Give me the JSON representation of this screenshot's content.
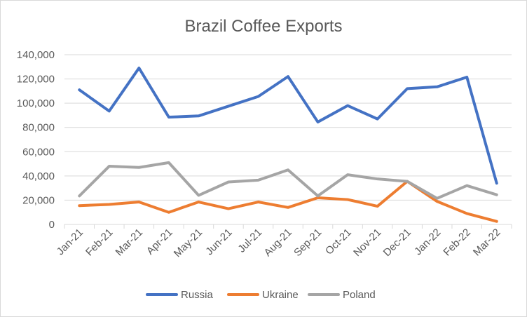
{
  "chart_data": {
    "type": "line",
    "title": "Brazil Coffee Exports",
    "xlabel": "",
    "ylabel": "",
    "categories": [
      "Jan-21",
      "Feb-21",
      "Mar-21",
      "Apr-21",
      "May-21",
      "Jun-21",
      "Jul-21",
      "Aug-21",
      "Sep-21",
      "Oct-21",
      "Nov-21",
      "Dec-21",
      "Jan-22",
      "Feb-22",
      "Mar-22"
    ],
    "ylim": [
      0,
      140000
    ],
    "yticks": [
      0,
      20000,
      40000,
      60000,
      80000,
      100000,
      120000,
      140000
    ],
    "ytick_labels": [
      "0",
      "20,000",
      "40,000",
      "60,000",
      "80,000",
      "100,000",
      "120,000",
      "140,000"
    ],
    "grid": true,
    "legend_position": "bottom",
    "series": [
      {
        "name": "Russia",
        "color": "#4472C4",
        "values": [
          111000,
          93500,
          129000,
          88500,
          89500,
          97500,
          105500,
          122000,
          84500,
          98000,
          87000,
          112000,
          113500,
          121500,
          34000
        ]
      },
      {
        "name": "Ukraine",
        "color": "#ED7D31",
        "values": [
          15500,
          16500,
          18500,
          10000,
          18500,
          13000,
          18500,
          14000,
          22000,
          20500,
          15000,
          35500,
          19000,
          9000,
          2500
        ]
      },
      {
        "name": "Poland",
        "color": "#A5A5A5",
        "values": [
          23500,
          48000,
          47000,
          51000,
          24000,
          35000,
          36500,
          45000,
          23500,
          41000,
          37500,
          35500,
          21500,
          32000,
          24500
        ]
      }
    ]
  }
}
